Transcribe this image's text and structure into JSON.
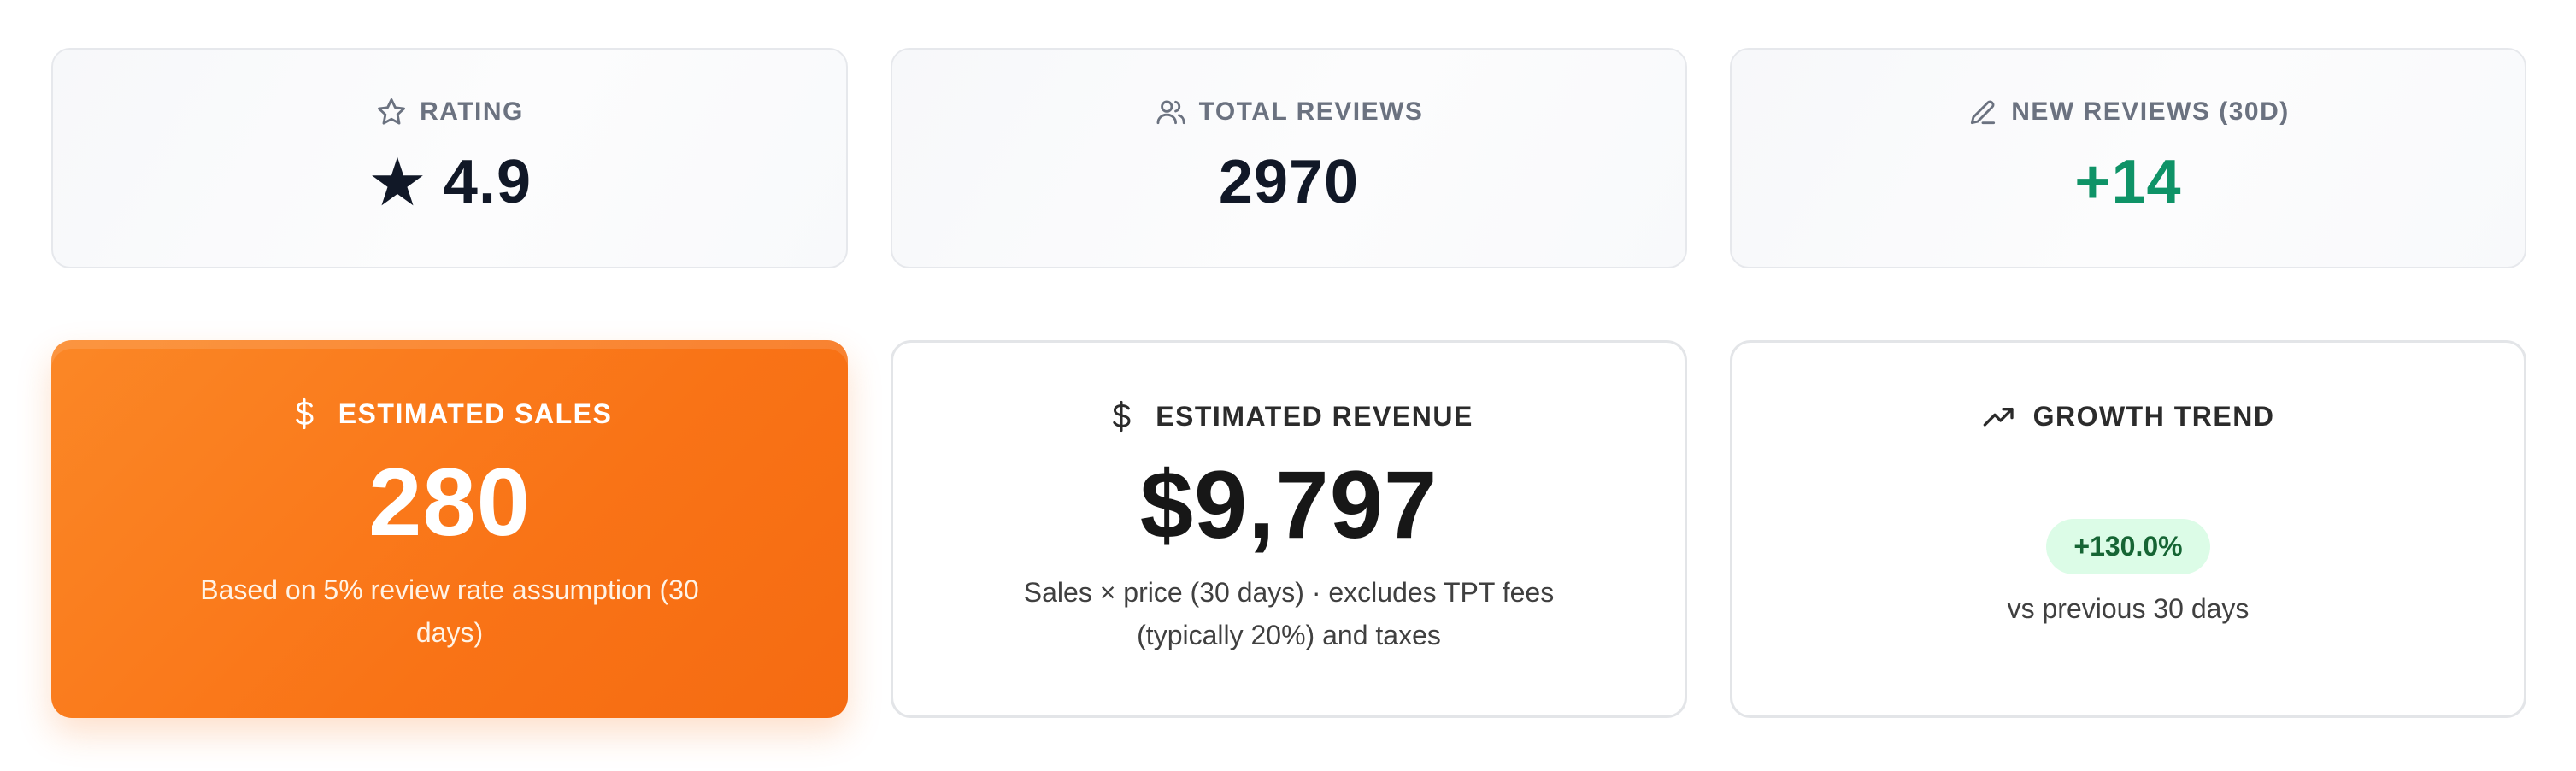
{
  "stats_top": {
    "rating": {
      "label": "RATING",
      "icon": "star-outline-icon",
      "star_glyph": "★",
      "value": "4.9"
    },
    "total_reviews": {
      "label": "TOTAL REVIEWS",
      "icon": "users-icon",
      "value": "2970"
    },
    "new_reviews": {
      "label": "NEW REVIEWS (30D)",
      "icon": "pencil-icon",
      "value": "+14",
      "color": "#0f9367"
    }
  },
  "stats_bottom": {
    "estimated_sales": {
      "label": "ESTIMATED SALES",
      "icon": "dollar-icon",
      "value": "280",
      "note": "Based on 5% review rate assumption (30 days)",
      "color": "#f97316"
    },
    "estimated_revenue": {
      "label": "ESTIMATED REVENUE",
      "icon": "dollar-icon",
      "value": "$9,797",
      "note": "Sales × price (30 days) · excludes TPT fees (typically 20%) and taxes"
    },
    "growth_trend": {
      "label": "GROWTH TREND",
      "icon": "trend-up-icon",
      "badge": "+130.0%",
      "note": "vs previous 30 days",
      "badge_bg": "#dcfce7",
      "badge_text_color": "#166534"
    }
  }
}
